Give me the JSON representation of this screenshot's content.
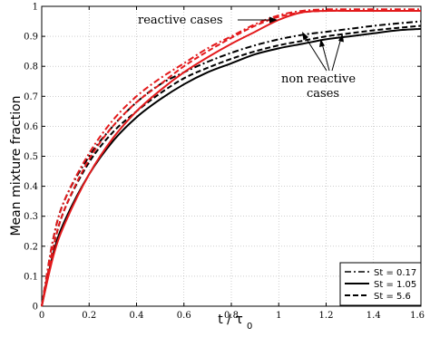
{
  "chart_data": {
    "type": "line",
    "xlabel": "t / τ",
    "xlabel_sub": "0",
    "ylabel": "Mean mixture fraction",
    "xlim": [
      0,
      1.6
    ],
    "ylim": [
      0,
      1
    ],
    "x_ticks": [
      "0",
      "0.2",
      "0.4",
      "0.6",
      "0.8",
      "1",
      "1.2",
      "1.4",
      "1.6"
    ],
    "y_ticks": [
      "0",
      "0.1",
      "0.2",
      "0.3",
      "0.4",
      "0.5",
      "0.6",
      "0.7",
      "0.8",
      "0.9",
      "1"
    ],
    "grid": true,
    "legend_position": "bottom-right",
    "legend": [
      {
        "label": "St = 0.17",
        "style": "dashdot",
        "color": "#000000"
      },
      {
        "label": "St = 1.05",
        "style": "solid",
        "color": "#000000"
      },
      {
        "label": "St = 5.6",
        "style": "dashed",
        "color": "#000000"
      }
    ],
    "annotations": {
      "reactive": "reactive cases",
      "non_reactive_line1": "non reactive",
      "non_reactive_line2": "cases"
    },
    "series": [
      {
        "group": "non reactive",
        "St": "0.17",
        "style": "dashdot",
        "color": "#000000",
        "x": [
          0,
          0.05,
          0.1,
          0.2,
          0.3,
          0.4,
          0.5,
          0.6,
          0.7,
          0.8,
          0.9,
          1.0,
          1.1,
          1.2,
          1.3,
          1.4,
          1.5,
          1.6
        ],
        "y": [
          0,
          0.23,
          0.36,
          0.5,
          0.6,
          0.68,
          0.74,
          0.78,
          0.815,
          0.845,
          0.87,
          0.89,
          0.905,
          0.915,
          0.925,
          0.935,
          0.943,
          0.95
        ]
      },
      {
        "group": "non reactive",
        "St": "1.05",
        "style": "solid",
        "color": "#000000",
        "x": [
          0,
          0.05,
          0.1,
          0.2,
          0.3,
          0.4,
          0.5,
          0.6,
          0.7,
          0.8,
          0.9,
          1.0,
          1.1,
          1.2,
          1.3,
          1.4,
          1.5,
          1.6
        ],
        "y": [
          0,
          0.18,
          0.29,
          0.44,
          0.55,
          0.63,
          0.69,
          0.74,
          0.78,
          0.81,
          0.84,
          0.86,
          0.875,
          0.89,
          0.9,
          0.91,
          0.92,
          0.925
        ]
      },
      {
        "group": "non reactive",
        "St": "5.6",
        "style": "dashed",
        "color": "#000000",
        "x": [
          0,
          0.05,
          0.1,
          0.2,
          0.3,
          0.4,
          0.5,
          0.6,
          0.7,
          0.8,
          0.9,
          1.0,
          1.1,
          1.2,
          1.3,
          1.4,
          1.5,
          1.6
        ],
        "y": [
          0,
          0.2,
          0.33,
          0.48,
          0.58,
          0.65,
          0.71,
          0.76,
          0.795,
          0.825,
          0.85,
          0.87,
          0.885,
          0.9,
          0.91,
          0.92,
          0.928,
          0.935
        ]
      },
      {
        "group": "reactive",
        "St": "0.17",
        "style": "dashdot",
        "color": "#e31a1c",
        "x": [
          0,
          0.05,
          0.1,
          0.2,
          0.3,
          0.4,
          0.5,
          0.6,
          0.7,
          0.8,
          0.9,
          1.0,
          1.1,
          1.2,
          1.3,
          1.4,
          1.5,
          1.6
        ],
        "y": [
          0,
          0.23,
          0.36,
          0.51,
          0.62,
          0.7,
          0.76,
          0.81,
          0.86,
          0.9,
          0.94,
          0.97,
          0.985,
          0.99,
          0.99,
          0.99,
          0.99,
          0.99
        ]
      },
      {
        "group": "reactive",
        "St": "1.05",
        "style": "solid",
        "color": "#e31a1c",
        "x": [
          0,
          0.05,
          0.1,
          0.2,
          0.3,
          0.4,
          0.5,
          0.6,
          0.7,
          0.8,
          0.9,
          1.0,
          1.1,
          1.2,
          1.3,
          1.4,
          1.5,
          1.6
        ],
        "y": [
          0,
          0.17,
          0.28,
          0.44,
          0.56,
          0.65,
          0.72,
          0.78,
          0.83,
          0.875,
          0.915,
          0.955,
          0.98,
          0.985,
          0.985,
          0.985,
          0.985,
          0.985
        ]
      },
      {
        "group": "reactive",
        "St": "5.6",
        "style": "dashed",
        "color": "#e31a1c",
        "x": [
          0,
          0.05,
          0.1,
          0.2,
          0.3,
          0.4,
          0.5,
          0.6,
          0.7,
          0.8,
          0.9,
          1.0,
          1.1,
          1.2,
          1.3,
          1.4,
          1.5,
          1.6
        ],
        "y": [
          0,
          0.2,
          0.33,
          0.49,
          0.6,
          0.68,
          0.74,
          0.8,
          0.85,
          0.895,
          0.935,
          0.965,
          0.98,
          0.985,
          0.985,
          0.985,
          0.985,
          0.985
        ]
      }
    ]
  }
}
